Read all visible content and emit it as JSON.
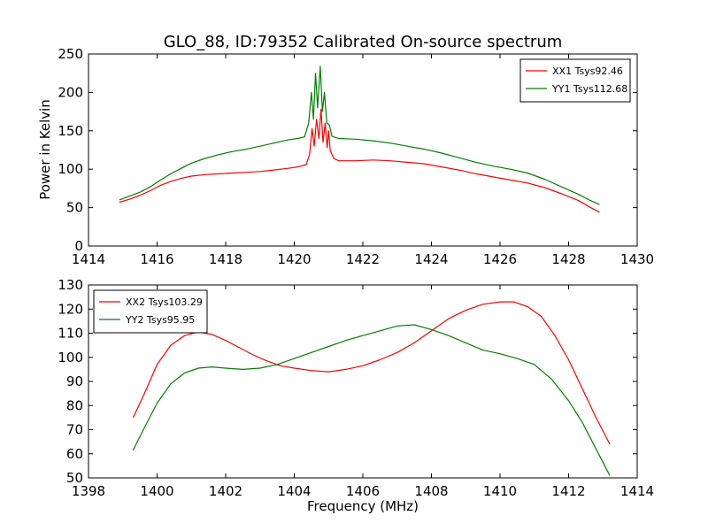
{
  "figure": {
    "title": "GLO_88, ID:79352 Calibrated On-source spectrum",
    "xlabel": "Frequency (MHz)",
    "top_ylabel": "Power in Kelvin"
  },
  "chart_data": [
    {
      "type": "line",
      "title": "GLO_88, ID:79352 Calibrated On-source spectrum",
      "xlabel": "",
      "ylabel": "Power in Kelvin",
      "xlim": [
        1414,
        1430
      ],
      "ylim": [
        0,
        250
      ],
      "xticks": [
        1414,
        1416,
        1418,
        1420,
        1422,
        1424,
        1426,
        1428,
        1430
      ],
      "yticks": [
        0,
        50,
        100,
        150,
        200,
        250
      ],
      "grid": false,
      "legend_position": "top-right",
      "series": [
        {
          "name": "XX1 Tsys92.46",
          "color": "#ff0000",
          "points": [
            [
              1414.9,
              57
            ],
            [
              1415.2,
              61
            ],
            [
              1415.5,
              66
            ],
            [
              1415.8,
              72
            ],
            [
              1416.1,
              79
            ],
            [
              1416.4,
              84
            ],
            [
              1416.7,
              88
            ],
            [
              1417.0,
              91
            ],
            [
              1417.4,
              93
            ],
            [
              1417.8,
              94
            ],
            [
              1418.2,
              95
            ],
            [
              1418.6,
              96
            ],
            [
              1419.0,
              97
            ],
            [
              1419.4,
              99
            ],
            [
              1419.8,
              101
            ],
            [
              1420.1,
              103
            ],
            [
              1420.35,
              106
            ],
            [
              1420.45,
              120
            ],
            [
              1420.52,
              153
            ],
            [
              1420.58,
              130
            ],
            [
              1420.65,
              165
            ],
            [
              1420.72,
              140
            ],
            [
              1420.78,
              178
            ],
            [
              1420.84,
              135
            ],
            [
              1420.9,
              160
            ],
            [
              1420.96,
              128
            ],
            [
              1421.0,
              150
            ],
            [
              1421.05,
              124
            ],
            [
              1421.15,
              114
            ],
            [
              1421.3,
              111
            ],
            [
              1421.8,
              111
            ],
            [
              1422.3,
              112
            ],
            [
              1422.8,
              111
            ],
            [
              1423.3,
              109
            ],
            [
              1423.8,
              107
            ],
            [
              1424.3,
              103
            ],
            [
              1424.8,
              99
            ],
            [
              1425.3,
              94
            ],
            [
              1425.8,
              90
            ],
            [
              1426.3,
              86
            ],
            [
              1426.8,
              82
            ],
            [
              1427.3,
              76
            ],
            [
              1427.8,
              68
            ],
            [
              1428.3,
              59
            ],
            [
              1428.6,
              51
            ],
            [
              1428.9,
              44
            ]
          ]
        },
        {
          "name": "YY1 Tsys112.68",
          "color": "#008000",
          "points": [
            [
              1414.9,
              60
            ],
            [
              1415.2,
              65
            ],
            [
              1415.5,
              70
            ],
            [
              1415.8,
              77
            ],
            [
              1416.1,
              86
            ],
            [
              1416.4,
              94
            ],
            [
              1416.7,
              101
            ],
            [
              1417.0,
              108
            ],
            [
              1417.4,
              114
            ],
            [
              1417.8,
              119
            ],
            [
              1418.2,
              123
            ],
            [
              1418.6,
              126
            ],
            [
              1419.0,
              130
            ],
            [
              1419.4,
              134
            ],
            [
              1419.8,
              138
            ],
            [
              1420.1,
              140
            ],
            [
              1420.3,
              142
            ],
            [
              1420.42,
              160
            ],
            [
              1420.5,
              200
            ],
            [
              1420.56,
              165
            ],
            [
              1420.62,
              225
            ],
            [
              1420.68,
              180
            ],
            [
              1420.76,
              234
            ],
            [
              1420.82,
              175
            ],
            [
              1420.88,
              200
            ],
            [
              1420.95,
              160
            ],
            [
              1421.02,
              158
            ],
            [
              1421.1,
              143
            ],
            [
              1421.3,
              140
            ],
            [
              1421.8,
              139
            ],
            [
              1422.3,
              137
            ],
            [
              1422.8,
              134
            ],
            [
              1423.3,
              130
            ],
            [
              1423.8,
              126
            ],
            [
              1424.3,
              121
            ],
            [
              1424.8,
              115
            ],
            [
              1425.3,
              109
            ],
            [
              1425.8,
              104
            ],
            [
              1426.3,
              100
            ],
            [
              1426.8,
              95
            ],
            [
              1427.3,
              87
            ],
            [
              1427.8,
              77
            ],
            [
              1428.3,
              67
            ],
            [
              1428.6,
              60
            ],
            [
              1428.9,
              54
            ]
          ]
        }
      ]
    },
    {
      "type": "line",
      "title": "",
      "xlabel": "Frequency (MHz)",
      "ylabel": "",
      "xlim": [
        1398,
        1414
      ],
      "ylim": [
        50,
        130
      ],
      "xticks": [
        1398,
        1400,
        1402,
        1404,
        1406,
        1408,
        1410,
        1412,
        1414
      ],
      "yticks": [
        50,
        60,
        70,
        80,
        90,
        100,
        110,
        120,
        130
      ],
      "grid": false,
      "legend_position": "top-left",
      "series": [
        {
          "name": "XX2 Tsys103.29",
          "color": "#ff0000",
          "points": [
            [
              1399.3,
              75
            ],
            [
              1399.6,
              84
            ],
            [
              1400.0,
              97
            ],
            [
              1400.4,
              105
            ],
            [
              1400.8,
              109
            ],
            [
              1401.2,
              110.5
            ],
            [
              1401.6,
              109.5
            ],
            [
              1402.0,
              107
            ],
            [
              1402.4,
              104
            ],
            [
              1402.8,
              101
            ],
            [
              1403.2,
              98.5
            ],
            [
              1403.6,
              96.5
            ],
            [
              1404.0,
              95.5
            ],
            [
              1404.5,
              94.5
            ],
            [
              1405.0,
              94
            ],
            [
              1405.5,
              95
            ],
            [
              1406.0,
              96.5
            ],
            [
              1406.5,
              99
            ],
            [
              1407.0,
              102
            ],
            [
              1407.5,
              106
            ],
            [
              1408.0,
              111
            ],
            [
              1408.5,
              116
            ],
            [
              1409.0,
              119.5
            ],
            [
              1409.5,
              122
            ],
            [
              1410.0,
              123
            ],
            [
              1410.4,
              123
            ],
            [
              1410.8,
              121
            ],
            [
              1411.2,
              117
            ],
            [
              1411.6,
              109
            ],
            [
              1412.0,
              99
            ],
            [
              1412.4,
              87
            ],
            [
              1412.8,
              75
            ],
            [
              1413.2,
              64
            ]
          ]
        },
        {
          "name": "YY2 Tsys95.95",
          "color": "#008000",
          "points": [
            [
              1399.3,
              61.5
            ],
            [
              1399.6,
              70
            ],
            [
              1400.0,
              81
            ],
            [
              1400.4,
              89
            ],
            [
              1400.8,
              93.5
            ],
            [
              1401.2,
              95.5
            ],
            [
              1401.6,
              96
            ],
            [
              1402.0,
              95.5
            ],
            [
              1402.5,
              95
            ],
            [
              1403.0,
              95.5
            ],
            [
              1403.5,
              97
            ],
            [
              1404.0,
              99.5
            ],
            [
              1404.5,
              102
            ],
            [
              1405.0,
              104.5
            ],
            [
              1405.5,
              107
            ],
            [
              1406.0,
              109
            ],
            [
              1406.5,
              111
            ],
            [
              1407.0,
              113
            ],
            [
              1407.5,
              113.5
            ],
            [
              1408.0,
              111.5
            ],
            [
              1408.5,
              109
            ],
            [
              1409.0,
              106
            ],
            [
              1409.5,
              103
            ],
            [
              1410.0,
              101.5
            ],
            [
              1410.5,
              99.5
            ],
            [
              1411.0,
              97
            ],
            [
              1411.5,
              91
            ],
            [
              1412.0,
              82
            ],
            [
              1412.4,
              73
            ],
            [
              1412.8,
              62
            ],
            [
              1413.2,
              51
            ]
          ]
        }
      ]
    }
  ]
}
